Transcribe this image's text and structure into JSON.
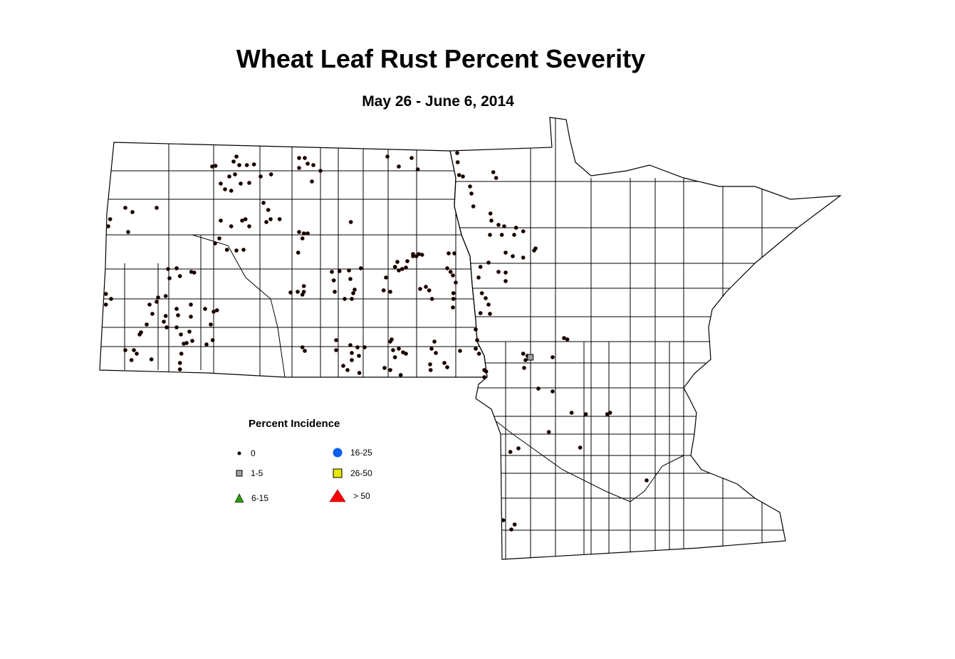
{
  "title": "Wheat Leaf Rust Percent Severity",
  "subtitle": "May 26 - June 6, 2014",
  "legend": {
    "title": "Percent Incidence",
    "items": [
      {
        "label": "0",
        "shape": "dot",
        "color": "#000000"
      },
      {
        "label": "1-5",
        "shape": "square",
        "color": "#a0a0a0"
      },
      {
        "label": "6-15",
        "shape": "triangle",
        "color": "#2e9a12"
      },
      {
        "label": "16-25",
        "shape": "circle",
        "color": "#0a5ff0"
      },
      {
        "label": "26-50",
        "shape": "square",
        "color": "#e8e800"
      },
      {
        "label": "> 50",
        "shape": "triangle",
        "color": "#ff0000"
      }
    ]
  },
  "regions": [
    "North Dakota",
    "Minnesota"
  ],
  "observations": {
    "0": [
      [
        -104.17,
        47.87
      ],
      [
        -104.13,
        47.97
      ],
      [
        -103.81,
        48.13
      ],
      [
        -103.75,
        47.79
      ],
      [
        -103.66,
        48.07
      ],
      [
        -103.15,
        48.13
      ],
      [
        -104.22,
        46.92
      ],
      [
        -104.11,
        46.85
      ],
      [
        -104.22,
        46.77
      ],
      [
        -101.91,
        48.72
      ],
      [
        -101.98,
        48.71
      ],
      [
        -101.47,
        48.85
      ],
      [
        -101.53,
        48.78
      ],
      [
        -101.41,
        48.73
      ],
      [
        -101.25,
        48.73
      ],
      [
        -101.1,
        48.74
      ],
      [
        -101.62,
        48.57
      ],
      [
        -101.5,
        48.6
      ],
      [
        -101.8,
        48.47
      ],
      [
        -101.71,
        48.39
      ],
      [
        -101.58,
        48.37
      ],
      [
        -101.38,
        48.47
      ],
      [
        -101.2,
        48.48
      ],
      [
        -100.96,
        48.57
      ],
      [
        -100.74,
        48.6
      ],
      [
        -100.15,
        48.83
      ],
      [
        -100.03,
        48.83
      ],
      [
        -99.97,
        48.75
      ],
      [
        -99.85,
        48.73
      ],
      [
        -99.7,
        48.65
      ],
      [
        -99.88,
        48.5
      ],
      [
        -100.15,
        48.69
      ],
      [
        -98.29,
        48.85
      ],
      [
        -98.05,
        48.71
      ],
      [
        -97.78,
        48.83
      ],
      [
        -97.65,
        48.67
      ],
      [
        -96.82,
        48.9
      ],
      [
        -96.81,
        48.77
      ],
      [
        -96.78,
        48.59
      ],
      [
        -96.7,
        48.57
      ],
      [
        -96.06,
        48.63
      ],
      [
        -96.0,
        48.55
      ],
      [
        -96.55,
        48.43
      ],
      [
        -96.52,
        48.33
      ],
      [
        -96.48,
        48.15
      ],
      [
        -96.12,
        48.05
      ],
      [
        -96.1,
        47.95
      ],
      [
        -95.95,
        47.89
      ],
      [
        -96.13,
        47.75
      ],
      [
        -95.88,
        47.75
      ],
      [
        -95.83,
        47.87
      ],
      [
        -95.62,
        47.75
      ],
      [
        -95.58,
        47.85
      ],
      [
        -95.43,
        47.8
      ],
      [
        -95.8,
        47.5
      ],
      [
        -95.65,
        47.45
      ],
      [
        -95.43,
        47.43
      ],
      [
        -95.2,
        47.53
      ],
      [
        -95.17,
        47.56
      ],
      [
        -100.9,
        48.2
      ],
      [
        -100.8,
        48.1
      ],
      [
        -100.75,
        47.97
      ],
      [
        -100.84,
        47.93
      ],
      [
        -100.56,
        47.97
      ],
      [
        -101.35,
        47.95
      ],
      [
        -101.28,
        47.97
      ],
      [
        -101.2,
        47.87
      ],
      [
        -101.58,
        47.87
      ],
      [
        -101.8,
        47.95
      ],
      [
        -100.15,
        47.79
      ],
      [
        -100.05,
        47.77
      ],
      [
        -99.97,
        47.77
      ],
      [
        -100.08,
        47.7
      ],
      [
        -100.17,
        47.5
      ],
      [
        -101.83,
        47.7
      ],
      [
        -101.92,
        47.63
      ],
      [
        -101.67,
        47.54
      ],
      [
        -101.47,
        47.53
      ],
      [
        -101.32,
        47.54
      ],
      [
        -99.06,
        47.93
      ],
      [
        -102.91,
        47.27
      ],
      [
        -102.73,
        47.28
      ],
      [
        -102.66,
        47.17
      ],
      [
        -102.42,
        47.23
      ],
      [
        -102.36,
        47.22
      ],
      [
        -102.88,
        47.14
      ],
      [
        -102.96,
        46.89
      ],
      [
        -103.12,
        46.87
      ],
      [
        -103.15,
        46.81
      ],
      [
        -103.3,
        46.77
      ],
      [
        -103.24,
        46.64
      ],
      [
        -102.96,
        46.61
      ],
      [
        -103.0,
        46.53
      ],
      [
        -102.73,
        46.71
      ],
      [
        -102.7,
        46.62
      ],
      [
        -102.43,
        46.77
      ],
      [
        -102.43,
        46.6
      ],
      [
        -102.13,
        46.71
      ],
      [
        -101.95,
        46.67
      ],
      [
        -101.88,
        46.69
      ],
      [
        -102.01,
        46.49
      ],
      [
        -103.36,
        46.49
      ],
      [
        -103.48,
        46.38
      ],
      [
        -103.51,
        46.35
      ],
      [
        -102.94,
        46.45
      ],
      [
        -102.73,
        46.45
      ],
      [
        -102.64,
        46.35
      ],
      [
        -102.46,
        46.39
      ],
      [
        -102.58,
        46.22
      ],
      [
        -102.52,
        46.23
      ],
      [
        -102.4,
        46.26
      ],
      [
        -102.1,
        46.21
      ],
      [
        -101.97,
        46.27
      ],
      [
        -103.81,
        46.13
      ],
      [
        -103.63,
        46.13
      ],
      [
        -103.57,
        46.08
      ],
      [
        -103.68,
        45.99
      ],
      [
        -103.26,
        46.0
      ],
      [
        -102.63,
        46.08
      ],
      [
        -102.66,
        45.95
      ],
      [
        -102.66,
        45.86
      ],
      [
        -100.18,
        46.95
      ],
      [
        -100.33,
        46.94
      ],
      [
        -100.05,
        47.03
      ],
      [
        -100.05,
        46.95
      ],
      [
        -100.08,
        46.91
      ],
      [
        -99.46,
        47.23
      ],
      [
        -99.3,
        47.24
      ],
      [
        -99.1,
        47.25
      ],
      [
        -99.42,
        47.11
      ],
      [
        -99.07,
        47.13
      ],
      [
        -98.85,
        47.28
      ],
      [
        -98.98,
        46.98
      ],
      [
        -99.01,
        46.93
      ],
      [
        -99.19,
        46.85
      ],
      [
        -99.04,
        46.85
      ],
      [
        -99.4,
        46.95
      ],
      [
        -98.37,
        46.97
      ],
      [
        -98.32,
        47.15
      ],
      [
        -98.23,
        46.95
      ],
      [
        -98.13,
        47.3
      ],
      [
        -98.05,
        47.25
      ],
      [
        -98.08,
        47.37
      ],
      [
        -97.98,
        47.27
      ],
      [
        -97.9,
        47.29
      ],
      [
        -97.75,
        47.48
      ],
      [
        -97.75,
        47.45
      ],
      [
        -97.68,
        47.45
      ],
      [
        -97.56,
        47.47
      ],
      [
        -97.63,
        47.48
      ],
      [
        -97.87,
        47.38
      ],
      [
        -97.48,
        47.02
      ],
      [
        -97.41,
        46.97
      ],
      [
        -97.35,
        46.85
      ],
      [
        -97.6,
        46.99
      ],
      [
        -97.0,
        47.49
      ],
      [
        -96.88,
        47.49
      ],
      [
        -97.03,
        47.28
      ],
      [
        -96.96,
        47.23
      ],
      [
        -96.91,
        47.18
      ],
      [
        -96.85,
        47.08
      ],
      [
        -96.9,
        46.93
      ],
      [
        -96.9,
        46.85
      ],
      [
        -96.91,
        46.73
      ],
      [
        -96.33,
        47.3
      ],
      [
        -96.37,
        47.15
      ],
      [
        -96.16,
        47.36
      ],
      [
        -95.95,
        47.23
      ],
      [
        -95.8,
        47.22
      ],
      [
        -95.8,
        47.1
      ],
      [
        -96.3,
        46.93
      ],
      [
        -96.22,
        46.86
      ],
      [
        -96.16,
        46.77
      ],
      [
        -96.13,
        46.64
      ],
      [
        -96.33,
        46.65
      ],
      [
        -100.08,
        46.17
      ],
      [
        -100.03,
        46.12
      ],
      [
        -99.37,
        46.27
      ],
      [
        -99.37,
        46.13
      ],
      [
        -99.07,
        46.2
      ],
      [
        -99.04,
        46.09
      ],
      [
        -98.92,
        46.17
      ],
      [
        -98.89,
        46.05
      ],
      [
        -98.77,
        46.17
      ],
      [
        -99.22,
        45.91
      ],
      [
        -99.13,
        45.85
      ],
      [
        -99.04,
        45.99
      ],
      [
        -98.88,
        45.81
      ],
      [
        -98.23,
        46.25
      ],
      [
        -98.17,
        46.13
      ],
      [
        -98.2,
        46.28
      ],
      [
        -98.05,
        46.15
      ],
      [
        -97.96,
        46.1
      ],
      [
        -97.9,
        46.08
      ],
      [
        -98.13,
        46.03
      ],
      [
        -98.35,
        45.88
      ],
      [
        -98.23,
        45.85
      ],
      [
        -98.01,
        45.78
      ],
      [
        -97.3,
        46.25
      ],
      [
        -97.36,
        46.15
      ],
      [
        -97.27,
        46.09
      ],
      [
        -97.39,
        45.93
      ],
      [
        -97.38,
        45.85
      ],
      [
        -97.09,
        45.95
      ],
      [
        -97.03,
        45.89
      ],
      [
        -96.76,
        46.12
      ],
      [
        -96.43,
        46.42
      ],
      [
        -96.4,
        46.27
      ],
      [
        -96.43,
        46.15
      ],
      [
        -96.36,
        46.08
      ],
      [
        -96.25,
        45.85
      ],
      [
        -96.21,
        45.83
      ],
      [
        -96.25,
        45.75
      ],
      [
        -94.57,
        46.3
      ],
      [
        -94.5,
        46.28
      ],
      [
        -95.43,
        46.08
      ],
      [
        -95.34,
        46.05
      ],
      [
        -95.38,
        45.99
      ],
      [
        -95.41,
        45.88
      ],
      [
        -94.81,
        46.03
      ],
      [
        -95.11,
        45.59
      ],
      [
        -94.81,
        45.55
      ],
      [
        -94.41,
        45.25
      ],
      [
        -94.11,
        45.23
      ],
      [
        -93.66,
        45.23
      ],
      [
        -93.6,
        45.25
      ],
      [
        -94.89,
        44.98
      ],
      [
        -94.23,
        44.76
      ],
      [
        -95.7,
        44.7
      ],
      [
        -95.53,
        44.75
      ],
      [
        -92.83,
        44.3
      ],
      [
        -95.85,
        43.74
      ],
      [
        -95.68,
        43.61
      ],
      [
        -95.61,
        43.68
      ]
    ],
    "1-5": [
      [
        -95.28,
        46.03
      ]
    ],
    "6-15": [],
    "16-25": [],
    "26-50": [],
    "> 50": []
  }
}
